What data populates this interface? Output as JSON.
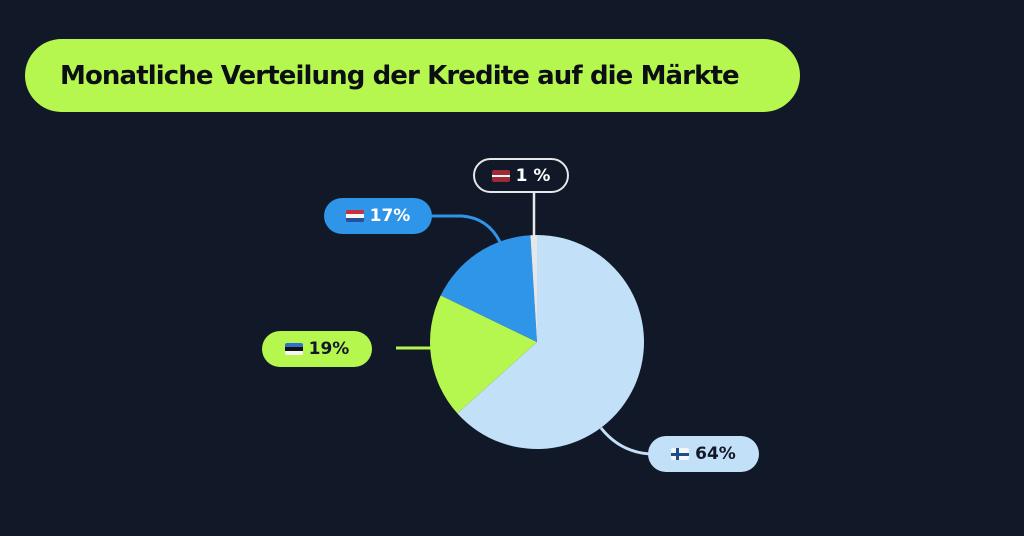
{
  "title": "Monatliche Verteilung der Kredite auf die Märkte",
  "colors": {
    "background": "#111827",
    "title_bg": "#b6f74f",
    "finland": "#c2e0f8",
    "estonia": "#b6f74f",
    "netherlands": "#2e95e8",
    "latvia": "#e5e7eb"
  },
  "labels": {
    "finland": {
      "flag": "finland-flag",
      "value": "64%"
    },
    "estonia": {
      "flag": "estonia-flag",
      "value": "19%"
    },
    "netherlands": {
      "flag": "netherlands-flag",
      "value": "17%"
    },
    "latvia": {
      "flag": "latvia-flag",
      "value": "1 %"
    }
  },
  "chart_data": {
    "type": "pie",
    "title": "Monatliche Verteilung der Kredite auf die Märkte",
    "categories": [
      "Finnland",
      "Estland",
      "Niederlande",
      "Lettland"
    ],
    "values": [
      64,
      19,
      17,
      1
    ],
    "value_labels": [
      "64%",
      "19%",
      "17%",
      "1 %"
    ],
    "colors": [
      "#c2e0f8",
      "#b6f74f",
      "#2e95e8",
      "#e5e7eb"
    ],
    "legend": "callout labels with country flags",
    "start_angle": "12 o'clock, clockwise"
  }
}
